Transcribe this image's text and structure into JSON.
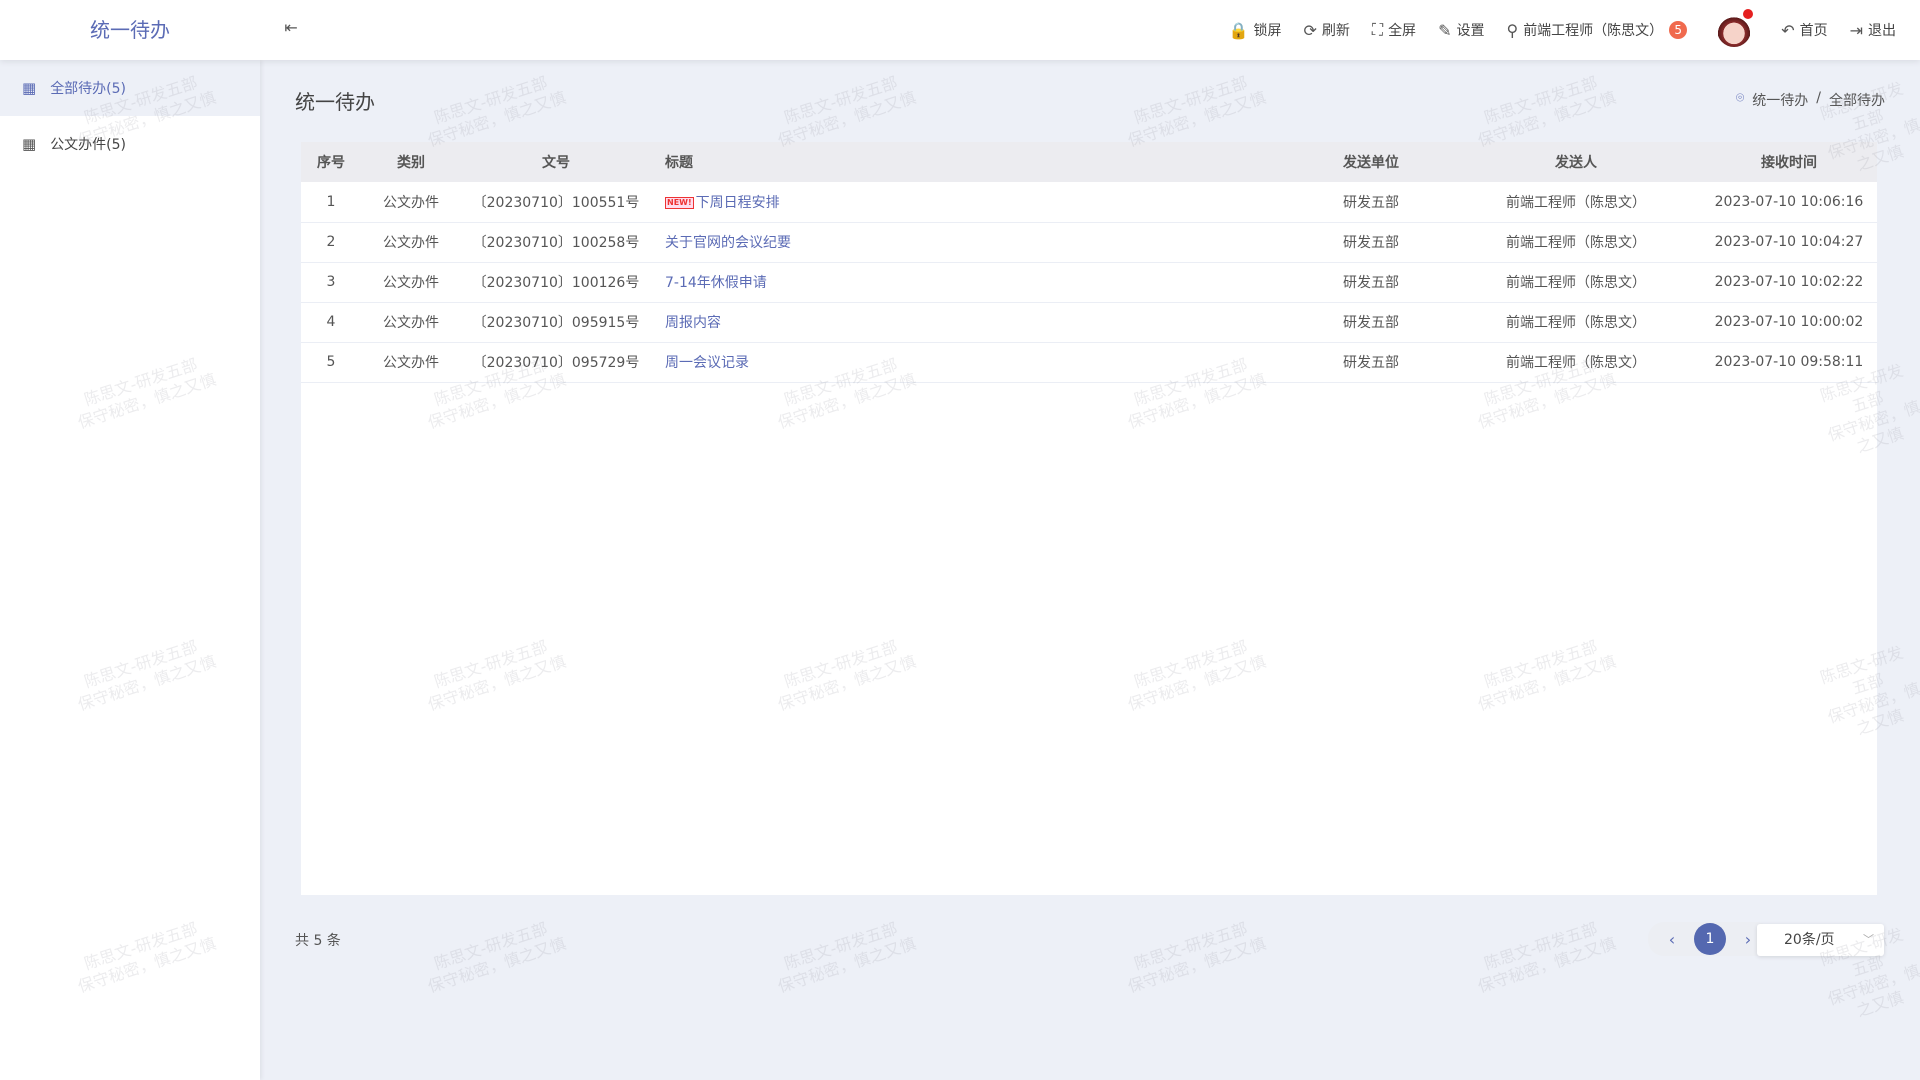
{
  "header": {
    "logo": "统一待办",
    "collapse_icon": "menu-fold-icon",
    "toolbar": [
      {
        "icon": "lock-icon",
        "glyph": "🔒",
        "label": "锁屏"
      },
      {
        "icon": "refresh-icon",
        "glyph": "⟳",
        "label": "刷新"
      },
      {
        "icon": "fullscreen-icon",
        "glyph": "⛶",
        "label": "全屏"
      },
      {
        "icon": "edit-icon",
        "glyph": "✎",
        "label": "设置"
      }
    ],
    "user": {
      "icon": "user-icon",
      "glyph": "⚲",
      "label": "前端工程师（陈思文）",
      "badge": "5"
    },
    "home": {
      "glyph": "↶",
      "label": "首页"
    },
    "logout": {
      "glyph": "⇥",
      "label": "退出"
    }
  },
  "sidebar": {
    "items": [
      {
        "label": "全部待办(5)",
        "active": true
      },
      {
        "label": "公文办件(5)",
        "active": false
      }
    ]
  },
  "page": {
    "title": "统一待办",
    "breadcrumb": [
      "统一待办",
      "全部待办"
    ],
    "separator": "/"
  },
  "table": {
    "columns": [
      "序号",
      "类别",
      "文号",
      "标题",
      "发送单位",
      "发送人",
      "接收时间"
    ],
    "rows": [
      {
        "no": "1",
        "type": "公文办件",
        "doc": "〔20230710〕100551号",
        "title": "下周日程安排",
        "new": "NEW!",
        "unit": "研发五部",
        "sender": "前端工程师（陈思文）",
        "time": "2023-07-10 10:06:16"
      },
      {
        "no": "2",
        "type": "公文办件",
        "doc": "〔20230710〕100258号",
        "title": "关于官网的会议纪要",
        "unit": "研发五部",
        "sender": "前端工程师（陈思文）",
        "time": "2023-07-10 10:04:27"
      },
      {
        "no": "3",
        "type": "公文办件",
        "doc": "〔20230710〕100126号",
        "title": "7-14年休假申请",
        "unit": "研发五部",
        "sender": "前端工程师（陈思文）",
        "time": "2023-07-10 10:02:22"
      },
      {
        "no": "4",
        "type": "公文办件",
        "doc": "〔20230710〕095915号",
        "title": "周报内容",
        "unit": "研发五部",
        "sender": "前端工程师（陈思文）",
        "time": "2023-07-10 10:00:02"
      },
      {
        "no": "5",
        "type": "公文办件",
        "doc": "〔20230710〕095729号",
        "title": "周一会议记录",
        "unit": "研发五部",
        "sender": "前端工程师（陈思文）",
        "time": "2023-07-10 09:58:11"
      }
    ]
  },
  "pagination": {
    "total": "共 5 条",
    "current": "1",
    "page_size": "20条/页"
  },
  "watermark": {
    "line1": "陈思文-研发五部",
    "line2": "保守秘密，慎之又慎"
  },
  "colors": {
    "accent": "#5b6bb5",
    "background": "#edf0f7",
    "badge": "#f06a4e"
  }
}
